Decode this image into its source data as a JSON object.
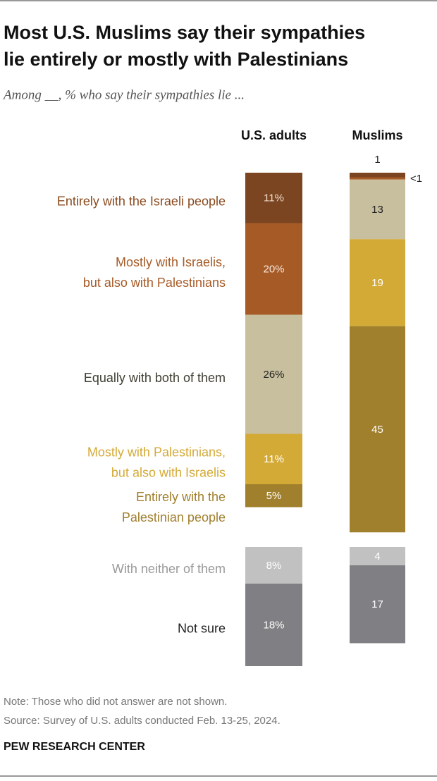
{
  "chart_data": {
    "type": "stacked-column",
    "title": [
      "Most U.S. Muslims say their sympathies",
      "lie entirely or mostly with Palestinians"
    ],
    "subtitle": "Among __, % who say their sympathies lie ...",
    "categories": [
      [
        "Entirely with the Israeli people"
      ],
      [
        "Mostly with Israelis,",
        "but also with Palestinians"
      ],
      [
        "Equally with both of them"
      ],
      [
        "Mostly with Palestinians,",
        "but also with Israelis"
      ],
      [
        "Entirely with the",
        "Palestinian people"
      ],
      [
        "With neither of them"
      ],
      [
        "Not sure"
      ]
    ],
    "colors": [
      "#7b4521",
      "#a65b27",
      "#c8bf9f",
      "#d4aa36",
      "#a07f2d",
      "#c1c1c1",
      "#808084"
    ],
    "label_colors": [
      "#8a4a1e",
      "#a65b27",
      "#3f3f33",
      "#d4aa36",
      "#a07f2d",
      "#999999",
      "#222222"
    ],
    "value_label_colors": [
      "#eedccb",
      "#f5e6da",
      "#222222",
      "#ffffff",
      "#ffffff",
      "#ffffff",
      "#ffffff"
    ],
    "series": [
      {
        "name": "U.S. adults",
        "values": [
          11,
          20,
          26,
          11,
          5,
          8,
          18
        ],
        "value_labels": [
          "11%",
          "20%",
          "26%",
          "11%",
          "5%",
          "8%",
          "18%"
        ]
      },
      {
        "name": "Muslims",
        "values": [
          1,
          0.5,
          13,
          19,
          45,
          4,
          17
        ],
        "value_labels": [
          "1",
          "<1",
          "13",
          "19",
          "45",
          "4",
          "17"
        ]
      }
    ],
    "notes": [
      "Note: Those who did not answer are not shown.",
      "Source: Survey of U.S. adults conducted Feb. 13-25, 2024."
    ],
    "source_org": "PEW RESEARCH CENTER"
  }
}
